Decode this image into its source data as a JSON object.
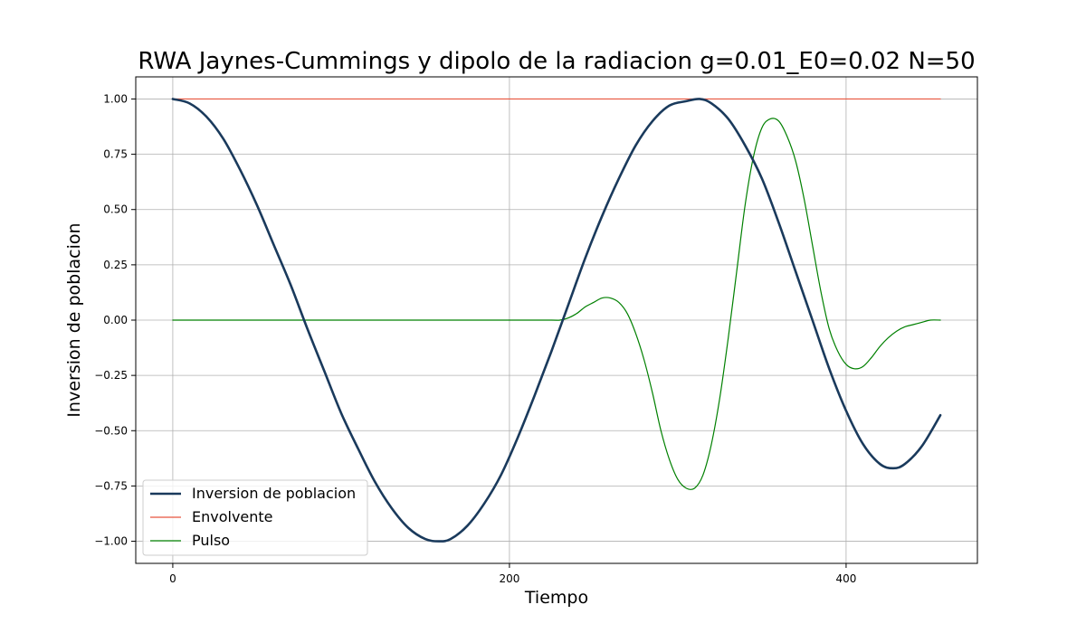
{
  "chart_data": {
    "type": "line",
    "title": "RWA Jaynes-Cummings y dipolo de la radiacion g=0.01_E0=0.02 N=50",
    "xlabel": "Tiempo",
    "ylabel": "Inversion de poblacion",
    "xlim": [
      -22,
      478
    ],
    "ylim": [
      -1.1,
      1.1
    ],
    "xticks": [
      0,
      200,
      400
    ],
    "yticks": [
      1.0,
      0.75,
      0.5,
      0.25,
      0.0,
      -0.25,
      -0.5,
      -0.75,
      -1.0
    ],
    "ytick_labels": [
      "1.00",
      "0.75",
      "0.50",
      "0.25",
      "0.00",
      "−0.25",
      "−0.50",
      "−0.75",
      "−1.00"
    ],
    "grid": true,
    "legend_position": "lower-left",
    "t_max": 456,
    "series": [
      {
        "name": "Inversion de poblacion",
        "color": "#1a3a5c",
        "x": [
          0,
          10,
          20,
          30,
          40,
          50,
          60,
          70,
          80,
          90,
          100,
          110,
          120,
          130,
          140,
          150,
          158,
          165,
          175,
          185,
          195,
          205,
          215,
          225,
          235,
          245,
          255,
          265,
          275,
          285,
          295,
          305,
          313,
          320,
          330,
          340,
          350,
          360,
          370,
          380,
          390,
          400,
          410,
          420,
          428,
          435,
          445,
          456
        ],
        "y": [
          1.0,
          0.98,
          0.92,
          0.82,
          0.68,
          0.52,
          0.34,
          0.16,
          -0.04,
          -0.23,
          -0.42,
          -0.58,
          -0.73,
          -0.85,
          -0.94,
          -0.99,
          -1.0,
          -0.99,
          -0.93,
          -0.83,
          -0.7,
          -0.53,
          -0.34,
          -0.14,
          0.07,
          0.28,
          0.47,
          0.64,
          0.79,
          0.9,
          0.97,
          0.99,
          1.0,
          0.98,
          0.91,
          0.79,
          0.64,
          0.44,
          0.22,
          0.0,
          -0.22,
          -0.41,
          -0.56,
          -0.65,
          -0.67,
          -0.65,
          -0.57,
          -0.43
        ]
      },
      {
        "name": "Envolvente",
        "color": "#e8553e",
        "x": [
          0,
          456
        ],
        "y": [
          1.0,
          1.0
        ]
      },
      {
        "name": "Pulso",
        "color": "#008000",
        "x": [
          0,
          50,
          100,
          150,
          200,
          225,
          230,
          235,
          240,
          245,
          250,
          255,
          260,
          265,
          270,
          275,
          280,
          285,
          290,
          295,
          300,
          305,
          310,
          315,
          320,
          325,
          330,
          335,
          340,
          345,
          350,
          355,
          360,
          365,
          370,
          375,
          380,
          385,
          390,
          395,
          400,
          405,
          410,
          415,
          420,
          425,
          430,
          435,
          440,
          445,
          450,
          456
        ],
        "y": [
          0,
          0,
          0,
          0,
          0,
          0,
          0,
          0.01,
          0.03,
          0.06,
          0.08,
          0.1,
          0.1,
          0.08,
          0.03,
          -0.06,
          -0.18,
          -0.33,
          -0.5,
          -0.63,
          -0.72,
          -0.76,
          -0.76,
          -0.7,
          -0.56,
          -0.35,
          -0.08,
          0.22,
          0.52,
          0.74,
          0.87,
          0.91,
          0.9,
          0.83,
          0.72,
          0.55,
          0.34,
          0.13,
          -0.04,
          -0.14,
          -0.2,
          -0.22,
          -0.21,
          -0.17,
          -0.12,
          -0.08,
          -0.05,
          -0.03,
          -0.02,
          -0.01,
          0,
          0
        ]
      }
    ]
  }
}
